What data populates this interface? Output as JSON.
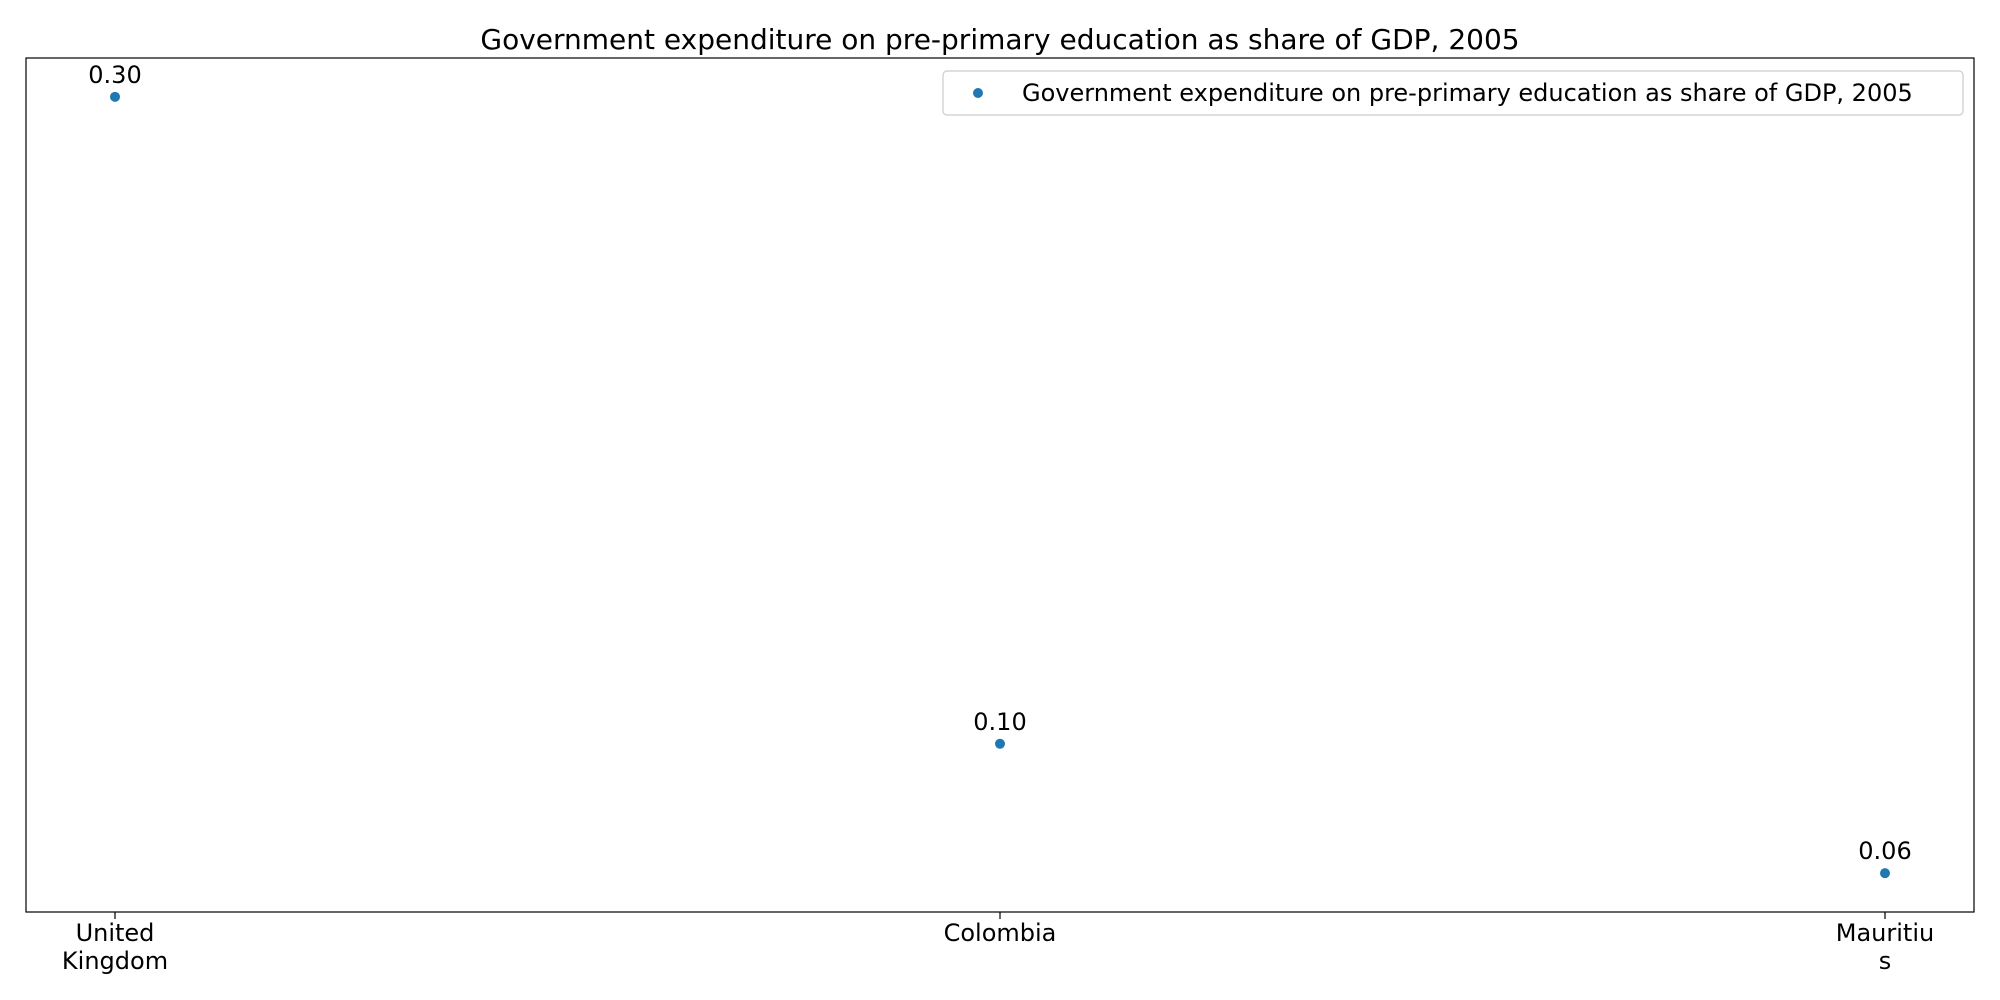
{
  "chart_data": {
    "type": "scatter",
    "title": "Government expenditure on pre-primary education as share of GDP, 2005",
    "xlabel": "",
    "ylabel": "",
    "categories": [
      [
        "United",
        "Kingdom"
      ],
      [
        "Colombia"
      ],
      [
        "Mauritiu",
        "s"
      ]
    ],
    "series": [
      {
        "name": "Government expenditure on pre-primary education as share of GDP, 2005",
        "values": [
          0.3,
          0.1,
          0.06
        ],
        "labels": [
          "0.30",
          "0.10",
          "0.06"
        ],
        "color": "#1f77b4"
      }
    ],
    "ylim": [
      0.048,
      0.312
    ],
    "grid": false,
    "legend_position": "top-right",
    "y_ticks_visible": false
  }
}
